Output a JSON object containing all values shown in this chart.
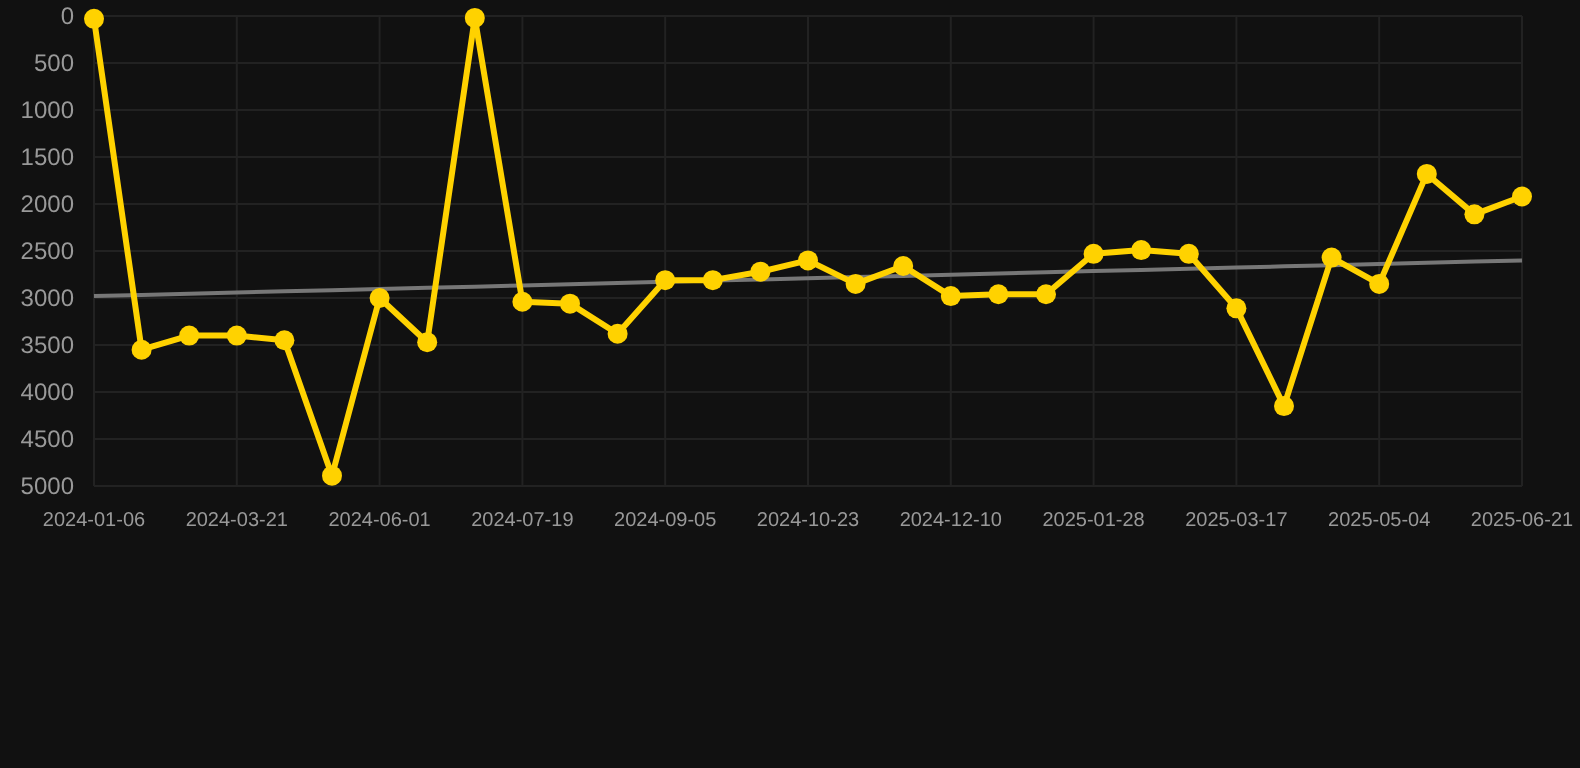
{
  "chart_data": {
    "type": "line",
    "categories": [
      "2024-01-06",
      null,
      null,
      "2024-03-21",
      null,
      null,
      "2024-06-01",
      null,
      null,
      "2024-07-19",
      null,
      null,
      "2024-09-05",
      null,
      null,
      "2024-10-23",
      null,
      null,
      "2024-12-10",
      null,
      null,
      "2025-01-28",
      null,
      null,
      "2025-03-17",
      null,
      null,
      "2025-05-04",
      null,
      null,
      "2025-06-21"
    ],
    "series": [
      {
        "color": "#ffd200",
        "values": [
          30,
          3550,
          3400,
          3400,
          3450,
          4890,
          3000,
          3470,
          20,
          3040,
          3060,
          3380,
          2810,
          2810,
          2720,
          2600,
          2850,
          2660,
          2980,
          2960,
          2960,
          2530,
          2490,
          2530,
          3110,
          4150,
          2570,
          2850,
          1680,
          2110,
          1920
        ]
      },
      {
        "type": "line",
        "color": "#777777",
        "marker": "none",
        "values": [
          2980,
          2967,
          2955,
          2942,
          2929,
          2917,
          2904,
          2891,
          2879,
          2866,
          2853,
          2841,
          2828,
          2815,
          2803,
          2790,
          2777,
          2765,
          2752,
          2739,
          2727,
          2714,
          2701,
          2689,
          2676,
          2663,
          2651,
          2638,
          2625,
          2613,
          2600
        ]
      }
    ],
    "ylim": [
      5000,
      0
    ],
    "yticks": [
      0,
      500,
      1000,
      1500,
      2000,
      2500,
      3000,
      3500,
      4000,
      4500,
      5000
    ],
    "grid": true,
    "marker": "circle",
    "line_style": "solid"
  }
}
